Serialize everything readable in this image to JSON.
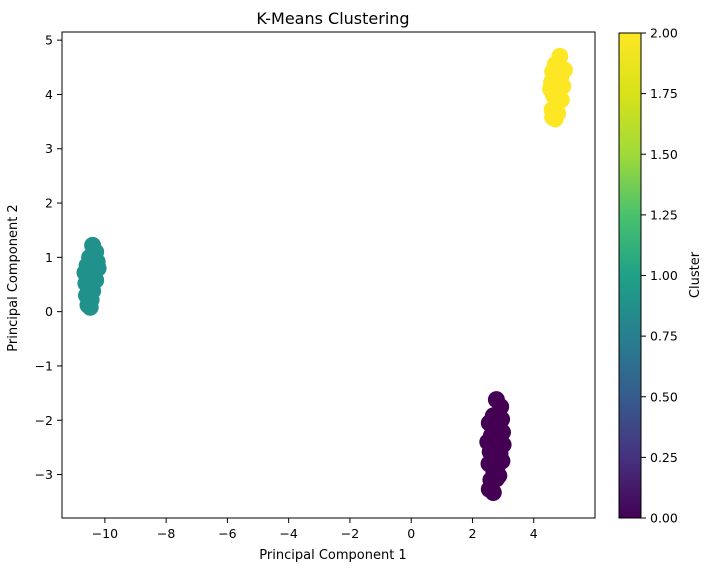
{
  "chart_data": {
    "type": "scatter",
    "title": "K-Means Clustering",
    "xlabel": "Principal Component 1",
    "ylabel": "Principal Component 2",
    "xlim": [
      -11.4,
      6.0
    ],
    "ylim": [
      -3.8,
      5.15
    ],
    "xticks": [
      -10,
      -8,
      -6,
      -4,
      -2,
      0,
      2,
      4
    ],
    "yticks": [
      -3,
      -2,
      -1,
      0,
      1,
      2,
      3,
      4,
      5
    ],
    "grid": false,
    "colorbar": {
      "label": "Cluster",
      "range": [
        0.0,
        2.0
      ],
      "ticks": [
        "0.00",
        "0.25",
        "0.50",
        "0.75",
        "1.00",
        "1.25",
        "1.50",
        "1.75",
        "2.00"
      ],
      "colormap": "viridis"
    },
    "series": [
      {
        "cluster": 0,
        "color": "#440154",
        "points": [
          [
            2.78,
            -1.62
          ],
          [
            2.92,
            -1.75
          ],
          [
            2.68,
            -1.92
          ],
          [
            2.95,
            -1.98
          ],
          [
            2.55,
            -2.05
          ],
          [
            2.82,
            -2.12
          ],
          [
            2.98,
            -2.22
          ],
          [
            2.62,
            -2.28
          ],
          [
            2.88,
            -2.35
          ],
          [
            2.5,
            -2.4
          ],
          [
            3.0,
            -2.45
          ],
          [
            2.72,
            -2.5
          ],
          [
            2.58,
            -2.58
          ],
          [
            2.9,
            -2.62
          ],
          [
            2.66,
            -2.7
          ],
          [
            2.96,
            -2.75
          ],
          [
            2.54,
            -2.8
          ],
          [
            2.8,
            -2.86
          ],
          [
            2.7,
            -2.95
          ],
          [
            2.86,
            -3.02
          ],
          [
            2.6,
            -3.1
          ],
          [
            2.78,
            -3.08
          ],
          [
            2.55,
            -3.27
          ],
          [
            2.68,
            -3.33
          ],
          [
            2.84,
            -2.48
          ]
        ]
      },
      {
        "cluster": 1,
        "color": "#21918c",
        "points": [
          [
            -10.4,
            1.22
          ],
          [
            -10.3,
            1.1
          ],
          [
            -10.5,
            1.0
          ],
          [
            -10.25,
            0.92
          ],
          [
            -10.58,
            0.85
          ],
          [
            -10.38,
            0.78
          ],
          [
            -10.22,
            0.8
          ],
          [
            -10.65,
            0.72
          ],
          [
            -10.45,
            0.65
          ],
          [
            -10.3,
            0.58
          ],
          [
            -10.62,
            0.52
          ],
          [
            -10.5,
            0.45
          ],
          [
            -10.4,
            0.38
          ],
          [
            -10.6,
            0.3
          ],
          [
            -10.45,
            0.22
          ],
          [
            -10.55,
            0.12
          ],
          [
            -10.48,
            0.08
          ],
          [
            -10.35,
            0.7
          ]
        ]
      },
      {
        "cluster": 2,
        "color": "#fde725",
        "points": [
          [
            4.85,
            4.7
          ],
          [
            4.7,
            4.55
          ],
          [
            5.0,
            4.45
          ],
          [
            4.62,
            4.42
          ],
          [
            4.9,
            4.35
          ],
          [
            4.75,
            4.28
          ],
          [
            4.58,
            4.22
          ],
          [
            4.95,
            4.15
          ],
          [
            4.82,
            4.05
          ],
          [
            4.65,
            3.98
          ],
          [
            4.9,
            3.9
          ],
          [
            4.72,
            3.82
          ],
          [
            4.6,
            3.72
          ],
          [
            4.78,
            3.65
          ],
          [
            4.62,
            3.58
          ],
          [
            4.7,
            3.55
          ],
          [
            4.55,
            4.1
          ]
        ]
      }
    ]
  }
}
